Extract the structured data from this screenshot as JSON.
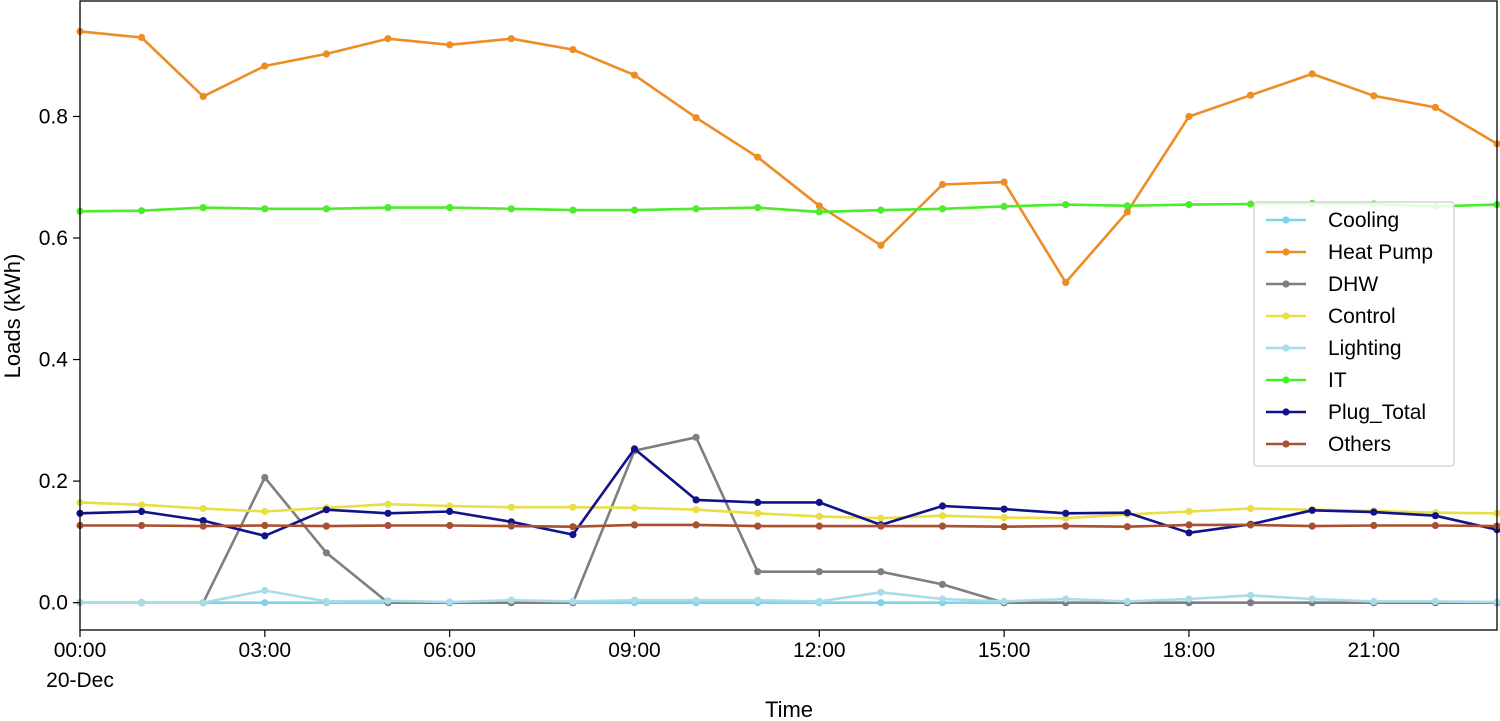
{
  "chart_data": {
    "type": "line",
    "title": "",
    "xlabel": "Time",
    "ylabel": "Loads (kWh)",
    "x_start_label": "20-Dec",
    "x": [
      "00:00",
      "01:00",
      "02:00",
      "03:00",
      "04:00",
      "05:00",
      "06:00",
      "07:00",
      "08:00",
      "09:00",
      "10:00",
      "11:00",
      "12:00",
      "13:00",
      "14:00",
      "15:00",
      "16:00",
      "17:00",
      "18:00",
      "19:00",
      "20:00",
      "21:00",
      "22:00",
      "23:00"
    ],
    "x_ticks": [
      "00:00",
      "03:00",
      "06:00",
      "09:00",
      "12:00",
      "15:00",
      "18:00",
      "21:00"
    ],
    "ylim": [
      -0.045,
      0.99
    ],
    "y_ticks": [
      "0.0",
      "0.2",
      "0.4",
      "0.6",
      "0.8"
    ],
    "y_tick_values": [
      0.0,
      0.2,
      0.4,
      0.6,
      0.8
    ],
    "grid": false,
    "legend_position": "right",
    "series": [
      {
        "name": "Cooling",
        "color": "#7fd3e8",
        "values": [
          0,
          0,
          0,
          0,
          0,
          0,
          0,
          0,
          0,
          0,
          0,
          0,
          0,
          0,
          0,
          0,
          0,
          0,
          0,
          0,
          0,
          0,
          0,
          0
        ]
      },
      {
        "name": "Heat Pump",
        "color": "#ee8c25",
        "values": [
          0.94,
          0.93,
          0.833,
          0.883,
          0.903,
          0.928,
          0.918,
          0.928,
          0.91,
          0.868,
          0.798,
          0.733,
          0.653,
          0.588,
          0.688,
          0.692,
          0.527,
          0.643,
          0.8,
          0.835,
          0.87,
          0.834,
          0.815,
          0.755
        ]
      },
      {
        "name": "DHW",
        "color": "#7f7f7f",
        "values": [
          0,
          0,
          0,
          0.206,
          0.082,
          0,
          0,
          0,
          0,
          0.25,
          0.272,
          0.051,
          0.051,
          0.051,
          0.03,
          0,
          0,
          0,
          0,
          0,
          0,
          0,
          0,
          0
        ]
      },
      {
        "name": "Control",
        "color": "#e8de45",
        "values": [
          0.165,
          0.161,
          0.155,
          0.15,
          0.156,
          0.162,
          0.159,
          0.157,
          0.157,
          0.156,
          0.153,
          0.147,
          0.142,
          0.139,
          0.143,
          0.14,
          0.139,
          0.145,
          0.15,
          0.155,
          0.153,
          0.151,
          0.148,
          0.147
        ]
      },
      {
        "name": "Lighting",
        "color": "#a8dce8",
        "values": [
          0,
          0,
          0,
          0.02,
          0.002,
          0.003,
          0.001,
          0.004,
          0.002,
          0.004,
          0.004,
          0.004,
          0.002,
          0.017,
          0.006,
          0.002,
          0.006,
          0.002,
          0.006,
          0.012,
          0.006,
          0.002,
          0.002,
          0.001
        ]
      },
      {
        "name": "IT",
        "color": "#4ceb2c",
        "values": [
          0.644,
          0.645,
          0.65,
          0.648,
          0.648,
          0.65,
          0.65,
          0.648,
          0.646,
          0.646,
          0.648,
          0.65,
          0.643,
          0.646,
          0.648,
          0.652,
          0.655,
          0.653,
          0.655,
          0.656,
          0.657,
          0.656,
          0.652,
          0.655
        ]
      },
      {
        "name": "Plug_Total",
        "color": "#12128a",
        "values": [
          0.147,
          0.15,
          0.135,
          0.11,
          0.153,
          0.147,
          0.15,
          0.133,
          0.112,
          0.253,
          0.169,
          0.165,
          0.165,
          0.128,
          0.159,
          0.154,
          0.147,
          0.148,
          0.115,
          0.129,
          0.152,
          0.149,
          0.143,
          0.12
        ]
      },
      {
        "name": "Others",
        "color": "#a85030",
        "values": [
          0.127,
          0.127,
          0.126,
          0.127,
          0.126,
          0.127,
          0.127,
          0.126,
          0.125,
          0.128,
          0.128,
          0.126,
          0.126,
          0.126,
          0.126,
          0.125,
          0.126,
          0.125,
          0.128,
          0.128,
          0.126,
          0.127,
          0.127,
          0.126
        ]
      }
    ]
  }
}
